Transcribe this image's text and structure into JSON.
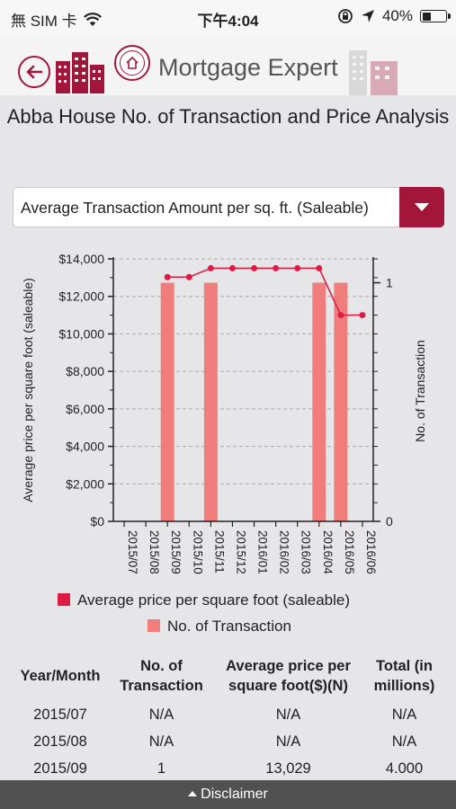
{
  "status_bar": {
    "carrier": "無 SIM 卡",
    "time": "下午4:04",
    "battery": "40%",
    "battery_level": 0.4,
    "icons": [
      "wifi-icon",
      "rotation-lock-icon",
      "location-arrow-icon",
      "battery-icon"
    ]
  },
  "header": {
    "title": "Mortgage Expert",
    "accent_color": "#a3163c",
    "icons": [
      "back-arrow-icon",
      "app-logo-icon",
      "buildings-icon"
    ]
  },
  "page": {
    "title": "Abba House No. of Transaction and Price Analysis"
  },
  "metric_select": {
    "value": "Average Transaction Amount per sq. ft. (Saleable)"
  },
  "chart_data": {
    "type": "bar",
    "categories": [
      "2015/07",
      "2015/08",
      "2015/09",
      "2015/10",
      "2015/11",
      "2015/12",
      "2016/01",
      "2016/02",
      "2016/03",
      "2016/04",
      "2016/05",
      "2016/06"
    ],
    "series": [
      {
        "name": "No. of Transaction",
        "type": "bar",
        "axis": "right",
        "color": "#f07c7c",
        "values": [
          null,
          null,
          1,
          null,
          1,
          null,
          null,
          null,
          null,
          1,
          1,
          null
        ]
      },
      {
        "name": "Average price per square foot (saleable)",
        "type": "line",
        "axis": "left",
        "color": "#dd1c45",
        "values": [
          null,
          null,
          13029,
          13029,
          13500,
          13500,
          13500,
          13500,
          13500,
          13500,
          11000,
          11000
        ]
      }
    ],
    "ylabel": "Average price per square foot (saleable)",
    "ylim": [
      0,
      14000
    ],
    "yticks": [
      "$0",
      "$2,000",
      "$4,000",
      "$6,000",
      "$8,000",
      "$10,000",
      "$12,000",
      "$14,000"
    ],
    "ylabel_right": "No. of Transaction",
    "ylim_right": [
      0,
      1.1
    ],
    "yticks_right": [
      "0",
      "1"
    ],
    "grid": true,
    "legend": "bottom"
  },
  "table": {
    "headers": [
      "Year/Month",
      "No. of Transaction",
      "Average price per square foot($)(N)",
      "Total (in millions)"
    ],
    "rows": [
      [
        "2015/07",
        "N/A",
        "N/A",
        "N/A"
      ],
      [
        "2015/08",
        "N/A",
        "N/A",
        "N/A"
      ],
      [
        "2015/09",
        "1",
        "13,029",
        "4.000"
      ]
    ]
  },
  "footer": {
    "disclaimer": "Disclaimer"
  }
}
